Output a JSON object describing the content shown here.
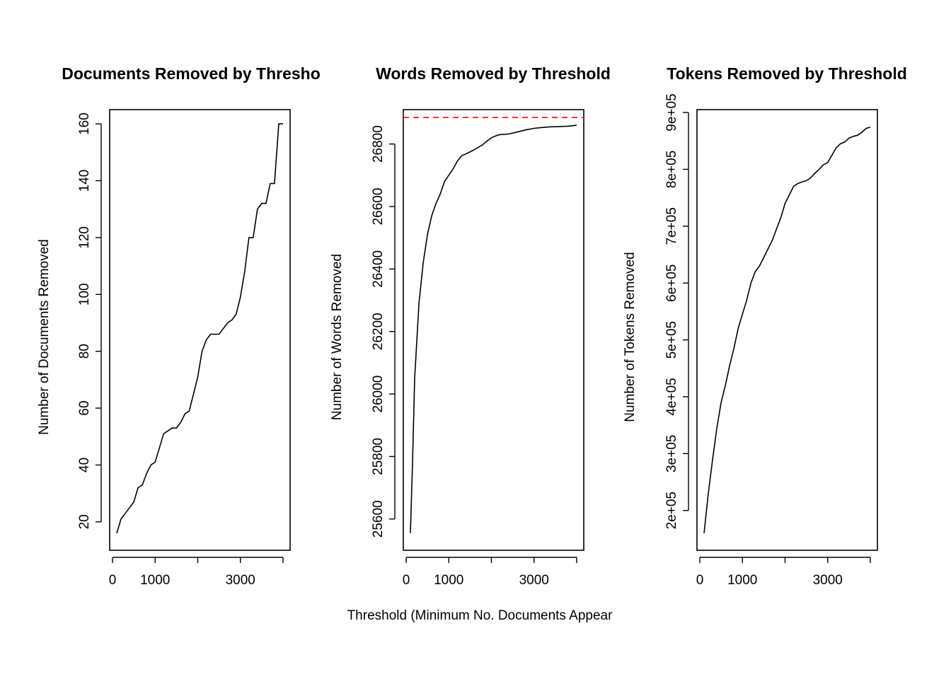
{
  "shared_xlabel": "Threshold (Minimum No. Documents Appear",
  "chart_data": [
    {
      "type": "line",
      "title": "Documents Removed by Thresho",
      "xlabel": "",
      "ylabel": "Number of Documents Removed",
      "xlim": [
        0,
        4100
      ],
      "ylim": [
        10,
        165
      ],
      "xticks": [
        0,
        1000,
        2000,
        3000,
        4000
      ],
      "xticklabels": [
        "0",
        "1000",
        "",
        "3000",
        ""
      ],
      "yticks": [
        20,
        40,
        60,
        80,
        100,
        120,
        140,
        160
      ],
      "yticklabels": [
        "20",
        "40",
        "60",
        "80",
        "100",
        "120",
        "140",
        "160"
      ],
      "grid": false,
      "series": [
        {
          "color": "#000000",
          "x": [
            100,
            200,
            300,
            400,
            500,
            600,
            700,
            800,
            900,
            1000,
            1100,
            1200,
            1300,
            1400,
            1500,
            1600,
            1700,
            1800,
            1900,
            2000,
            2100,
            2200,
            2300,
            2400,
            2500,
            2600,
            2700,
            2800,
            2900,
            3000,
            3100,
            3200,
            3300,
            3400,
            3500,
            3600,
            3700,
            3800,
            3900,
            4000
          ],
          "y": [
            16,
            21,
            23,
            25,
            27,
            32,
            33,
            37,
            40,
            41,
            46,
            51,
            52,
            53,
            53,
            55,
            58,
            59,
            65,
            71,
            80,
            84,
            86,
            86,
            86,
            88,
            90,
            91,
            93,
            99,
            108,
            120,
            120,
            130,
            132,
            132,
            139,
            139,
            160,
            160
          ]
        }
      ],
      "reference_lines": []
    },
    {
      "type": "line",
      "title": "Words Removed by Threshold",
      "xlabel": "",
      "ylabel": "Number of Words Removed",
      "xlim": [
        0,
        4100
      ],
      "ylim": [
        25500,
        26910
      ],
      "xticks": [
        0,
        1000,
        2000,
        3000,
        4000
      ],
      "xticklabels": [
        "0",
        "1000",
        "",
        "3000",
        ""
      ],
      "yticks": [
        25600,
        25800,
        26000,
        26200,
        26400,
        26600,
        26800
      ],
      "yticklabels": [
        "25600",
        "25800",
        "26000",
        "26200",
        "26400",
        "26600",
        "26800"
      ],
      "grid": false,
      "series": [
        {
          "color": "#000000",
          "x": [
            100,
            150,
            200,
            300,
            400,
            500,
            600,
            700,
            800,
            900,
            1000,
            1100,
            1200,
            1300,
            1400,
            1500,
            1600,
            1700,
            1800,
            1900,
            2000,
            2100,
            2200,
            2400,
            2600,
            2800,
            3000,
            3200,
            3400,
            3600,
            3800,
            4000
          ],
          "y": [
            25555,
            25780,
            26050,
            26290,
            26420,
            26510,
            26570,
            26610,
            26640,
            26680,
            26700,
            26720,
            26745,
            26762,
            26768,
            26775,
            26782,
            26790,
            26798,
            26810,
            26820,
            26826,
            26830,
            26832,
            26838,
            26845,
            26850,
            26853,
            26855,
            26856,
            26857,
            26860
          ]
        }
      ],
      "reference_lines": [
        {
          "orientation": "horizontal",
          "value": 26885,
          "color": "#ff0000",
          "style": "dashed"
        }
      ]
    },
    {
      "type": "line",
      "title": "Tokens Removed by Threshold",
      "xlabel": "",
      "ylabel": "Number of Tokens Removed",
      "xlim": [
        0,
        4100
      ],
      "ylim": [
        130000,
        905000
      ],
      "xticks": [
        0,
        1000,
        2000,
        3000,
        4000
      ],
      "xticklabels": [
        "0",
        "1000",
        "",
        "3000",
        ""
      ],
      "yticks": [
        200000,
        300000,
        400000,
        500000,
        600000,
        700000,
        800000,
        900000
      ],
      "yticklabels": [
        "2e+05",
        "3e+05",
        "4e+05",
        "5e+05",
        "6e+05",
        "7e+05",
        "8e+05",
        "9e+05"
      ],
      "grid": false,
      "series": [
        {
          "color": "#000000",
          "x": [
            100,
            200,
            300,
            400,
            500,
            600,
            700,
            800,
            900,
            1000,
            1100,
            1200,
            1300,
            1400,
            1500,
            1600,
            1700,
            1800,
            1900,
            2000,
            2100,
            2200,
            2300,
            2400,
            2500,
            2600,
            2700,
            2800,
            2900,
            3000,
            3100,
            3200,
            3300,
            3400,
            3500,
            3600,
            3700,
            3800,
            3900,
            4000
          ],
          "y": [
            160000,
            230000,
            290000,
            345000,
            390000,
            420000,
            455000,
            485000,
            520000,
            545000,
            570000,
            600000,
            620000,
            630000,
            645000,
            660000,
            675000,
            695000,
            715000,
            740000,
            755000,
            770000,
            775000,
            778000,
            780000,
            785000,
            793000,
            800000,
            808000,
            812000,
            825000,
            838000,
            845000,
            848000,
            855000,
            858000,
            860000,
            865000,
            872000,
            874000
          ]
        }
      ],
      "reference_lines": []
    }
  ]
}
